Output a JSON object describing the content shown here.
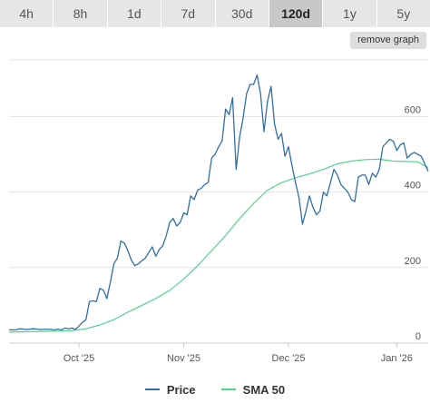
{
  "range_tabs": [
    {
      "label": "4h",
      "active": false
    },
    {
      "label": "8h",
      "active": false
    },
    {
      "label": "1d",
      "active": false
    },
    {
      "label": "7d",
      "active": false
    },
    {
      "label": "30d",
      "active": false
    },
    {
      "label": "120d",
      "active": true
    },
    {
      "label": "1y",
      "active": false
    },
    {
      "label": "5y",
      "active": false
    }
  ],
  "remove_graph_label": "remove graph",
  "colors": {
    "price": "#2f6fa8",
    "sma": "#4fd68a",
    "grid": "#e3e3e3",
    "axis_text": "#555555"
  },
  "chart_data": {
    "type": "line",
    "title": "",
    "xlabel": "",
    "ylabel": "",
    "x_range": [
      0,
      120
    ],
    "ylim": [
      0,
      750
    ],
    "y_ticks": [
      0,
      200,
      400,
      600
    ],
    "y_tick_labels": [
      "0",
      "200",
      "400",
      "600"
    ],
    "x_ticks": [
      {
        "day": 20,
        "label": "Oct '25"
      },
      {
        "day": 50,
        "label": "Nov '25"
      },
      {
        "day": 80,
        "label": "Dec '25"
      },
      {
        "day": 111,
        "label": "Jan '26"
      }
    ],
    "grid": true,
    "legend": "bottom-center",
    "series": [
      {
        "name": "Price",
        "color_key": "price",
        "points": [
          [
            0,
            35
          ],
          [
            2,
            35
          ],
          [
            3,
            38
          ],
          [
            5,
            36
          ],
          [
            7,
            38
          ],
          [
            9,
            36
          ],
          [
            11,
            37
          ],
          [
            13,
            35
          ],
          [
            14,
            37
          ],
          [
            15,
            35
          ],
          [
            16,
            40
          ],
          [
            17,
            38
          ],
          [
            18,
            40
          ],
          [
            19,
            36
          ],
          [
            20,
            45
          ],
          [
            21,
            55
          ],
          [
            22,
            62
          ],
          [
            23,
            110
          ],
          [
            24,
            112
          ],
          [
            25,
            110
          ],
          [
            26,
            145
          ],
          [
            27,
            140
          ],
          [
            28,
            118
          ],
          [
            29,
            162
          ],
          [
            30,
            210
          ],
          [
            31,
            225
          ],
          [
            32,
            270
          ],
          [
            33,
            265
          ],
          [
            34,
            245
          ],
          [
            35,
            220
          ],
          [
            36,
            205
          ],
          [
            37,
            210
          ],
          [
            38,
            218
          ],
          [
            39,
            225
          ],
          [
            40,
            240
          ],
          [
            41,
            255
          ],
          [
            42,
            230
          ],
          [
            43,
            248
          ],
          [
            44,
            258
          ],
          [
            45,
            285
          ],
          [
            46,
            320
          ],
          [
            47,
            330
          ],
          [
            48,
            310
          ],
          [
            49,
            320
          ],
          [
            50,
            345
          ],
          [
            51,
            340
          ],
          [
            52,
            390
          ],
          [
            53,
            380
          ],
          [
            54,
            405
          ],
          [
            55,
            410
          ],
          [
            56,
            420
          ],
          [
            57,
            425
          ],
          [
            58,
            490
          ],
          [
            59,
            500
          ],
          [
            60,
            520
          ],
          [
            61,
            535
          ],
          [
            62,
            620
          ],
          [
            63,
            605
          ],
          [
            64,
            650
          ],
          [
            65,
            460
          ],
          [
            66,
            545
          ],
          [
            67,
            595
          ],
          [
            68,
            660
          ],
          [
            69,
            685
          ],
          [
            70,
            685
          ],
          [
            71,
            710
          ],
          [
            72,
            660
          ],
          [
            73,
            560
          ],
          [
            74,
            640
          ],
          [
            75,
            680
          ],
          [
            76,
            580
          ],
          [
            77,
            540
          ],
          [
            78,
            555
          ],
          [
            79,
            495
          ],
          [
            80,
            520
          ],
          [
            81,
            470
          ],
          [
            82,
            425
          ],
          [
            83,
            385
          ],
          [
            84,
            315
          ],
          [
            85,
            350
          ],
          [
            86,
            390
          ],
          [
            87,
            360
          ],
          [
            88,
            340
          ],
          [
            89,
            350
          ],
          [
            90,
            400
          ],
          [
            91,
            390
          ],
          [
            92,
            425
          ],
          [
            93,
            460
          ],
          [
            94,
            445
          ],
          [
            95,
            420
          ],
          [
            96,
            410
          ],
          [
            97,
            400
          ],
          [
            98,
            380
          ],
          [
            99,
            375
          ],
          [
            100,
            440
          ],
          [
            101,
            445
          ],
          [
            102,
            445
          ],
          [
            103,
            420
          ],
          [
            104,
            450
          ],
          [
            105,
            440
          ],
          [
            106,
            460
          ],
          [
            107,
            520
          ],
          [
            108,
            530
          ],
          [
            109,
            540
          ],
          [
            110,
            535
          ],
          [
            111,
            510
          ],
          [
            112,
            525
          ],
          [
            113,
            530
          ],
          [
            114,
            490
          ],
          [
            115,
            500
          ],
          [
            116,
            505
          ],
          [
            117,
            500
          ],
          [
            118,
            495
          ],
          [
            119,
            475
          ],
          [
            120,
            455
          ]
        ]
      },
      {
        "name": "SMA 50",
        "color_key": "sma",
        "points": [
          [
            0,
            29
          ],
          [
            10,
            31
          ],
          [
            18,
            33
          ],
          [
            22,
            38
          ],
          [
            26,
            48
          ],
          [
            30,
            62
          ],
          [
            34,
            82
          ],
          [
            38,
            100
          ],
          [
            42,
            118
          ],
          [
            46,
            140
          ],
          [
            50,
            170
          ],
          [
            54,
            205
          ],
          [
            58,
            245
          ],
          [
            62,
            285
          ],
          [
            66,
            330
          ],
          [
            70,
            370
          ],
          [
            74,
            405
          ],
          [
            78,
            425
          ],
          [
            82,
            438
          ],
          [
            86,
            448
          ],
          [
            90,
            460
          ],
          [
            94,
            475
          ],
          [
            98,
            482
          ],
          [
            102,
            486
          ],
          [
            106,
            487
          ],
          [
            110,
            482
          ],
          [
            114,
            481
          ],
          [
            117,
            480
          ],
          [
            120,
            465
          ]
        ]
      }
    ]
  }
}
